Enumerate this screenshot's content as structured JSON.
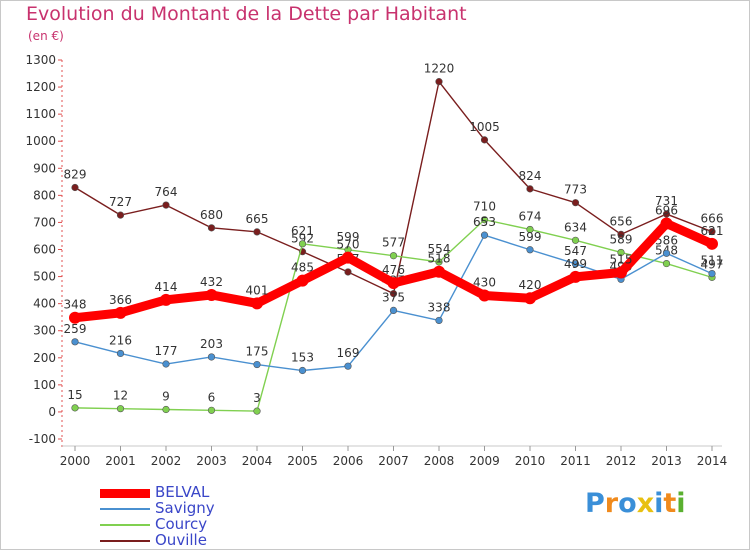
{
  "chart_data": {
    "type": "line",
    "title": "Evolution du Montant de la Dette par Habitant",
    "subtitle": "(en €)",
    "x": [
      "2000",
      "2001",
      "2002",
      "2003",
      "2004",
      "2005",
      "2006",
      "2007",
      "2008",
      "2009",
      "2010",
      "2011",
      "2012",
      "2013",
      "2014"
    ],
    "ylim": [
      -100,
      1300
    ],
    "yticks": [
      -100,
      0,
      100,
      200,
      300,
      400,
      500,
      600,
      700,
      800,
      900,
      1000,
      1100,
      1200,
      1300
    ],
    "grid": false,
    "legend_position": "bottom-left",
    "series": [
      {
        "name": "BELVAL",
        "color": "#ff0000",
        "values": [
          348,
          366,
          414,
          432,
          401,
          485,
          570,
          476,
          518,
          430,
          420,
          499,
          515,
          696,
          621
        ]
      },
      {
        "name": "Savigny",
        "color": "#4a90d0",
        "values": [
          259,
          216,
          177,
          203,
          175,
          153,
          169,
          375,
          338,
          653,
          599,
          547,
          490,
          586,
          511
        ]
      },
      {
        "name": "Courcy",
        "color": "#80d050",
        "values": [
          15,
          12,
          9,
          6,
          3,
          621,
          599,
          577,
          554,
          710,
          674,
          634,
          589,
          548,
          497
        ]
      },
      {
        "name": "Ouville",
        "color": "#7a1e1e",
        "values": [
          829,
          727,
          764,
          680,
          665,
          592,
          517,
          437,
          1220,
          1005,
          824,
          773,
          656,
          731,
          666
        ]
      }
    ]
  },
  "logo": {
    "letters": [
      "P",
      "r",
      "o",
      "x",
      "i",
      "t",
      "i"
    ],
    "colors": [
      "#3a8fd8",
      "#f08a1c",
      "#3a8fd8",
      "#e8c010",
      "#3a8fd8",
      "#f08a1c",
      "#5ab030"
    ]
  }
}
